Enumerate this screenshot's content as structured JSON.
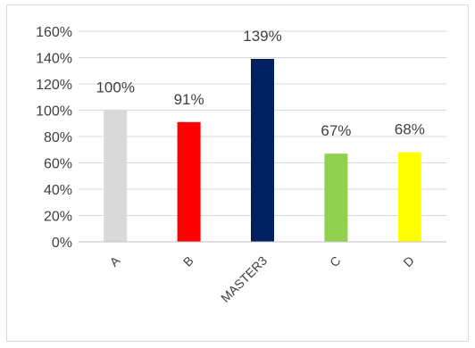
{
  "chart_data": {
    "type": "bar",
    "categories": [
      "A",
      "B",
      "MASTER3",
      "C",
      "D"
    ],
    "values": [
      100,
      91,
      139,
      67,
      68
    ],
    "value_labels": [
      "100%",
      "91%",
      "139%",
      "67%",
      "68%"
    ],
    "colors": [
      "#d9d9d9",
      "#ff0000",
      "#002060",
      "#92d050",
      "#ffff00"
    ],
    "ylim": [
      0,
      160
    ],
    "y_ticks": [
      0,
      20,
      40,
      60,
      80,
      100,
      120,
      140,
      160
    ],
    "y_tick_labels": [
      "0%",
      "20%",
      "40%",
      "60%",
      "80%",
      "100%",
      "120%",
      "140%",
      "160%"
    ],
    "grid": true,
    "legend": "none",
    "title": "",
    "xlabel": "",
    "ylabel": ""
  }
}
